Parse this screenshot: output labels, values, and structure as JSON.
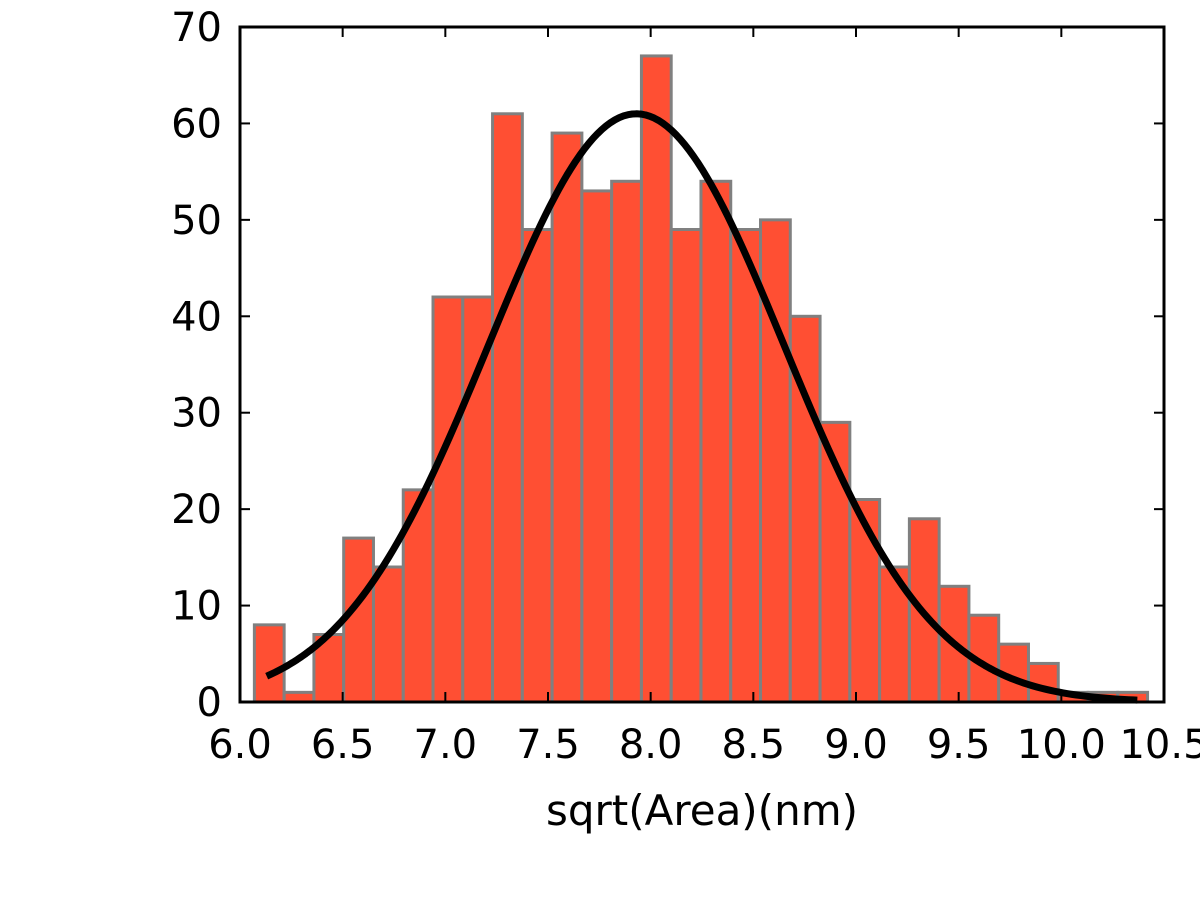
{
  "chart_data": {
    "type": "bar",
    "title": "",
    "xlabel": "sqrt(Area)(nm)",
    "ylabel": "",
    "xlim": [
      6.0,
      10.5
    ],
    "ylim": [
      0,
      70
    ],
    "xticks": [
      "6.0",
      "6.5",
      "7.0",
      "7.5",
      "8.0",
      "8.5",
      "9.0",
      "9.5",
      "10.0",
      "10.5"
    ],
    "yticks": [
      "0",
      "10",
      "20",
      "30",
      "40",
      "50",
      "60",
      "70"
    ],
    "grid": false,
    "bin_edges": [
      6.07,
      6.215,
      6.36,
      6.505,
      6.65,
      6.795,
      6.94,
      7.085,
      7.23,
      7.375,
      7.52,
      7.665,
      7.81,
      7.955,
      8.1,
      8.245,
      8.39,
      8.535,
      8.68,
      8.825,
      8.97,
      9.115,
      9.26,
      9.405,
      9.55,
      9.695,
      9.84,
      9.985,
      10.13,
      10.275,
      10.42
    ],
    "values": [
      8,
      1,
      7,
      17,
      14,
      22,
      42,
      42,
      61,
      49,
      59,
      53,
      54,
      67,
      49,
      54,
      49,
      50,
      40,
      29,
      21,
      14,
      19,
      12,
      9,
      6,
      4,
      1,
      1,
      1
    ],
    "bar_color": "#ff4f33",
    "bar_edge_color": "#808080",
    "fit_curve": {
      "type": "gaussian",
      "amplitude": 61,
      "mean": 7.93,
      "sigma": 0.72,
      "x_range": [
        6.13,
        10.37
      ],
      "color": "#000000"
    }
  }
}
